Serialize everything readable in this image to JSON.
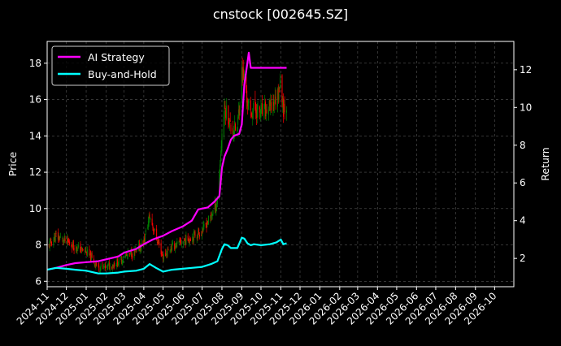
{
  "chart_data": {
    "type": "line",
    "title": "cnstock [002645.SZ]",
    "xlabel": "",
    "ylabel": "Price",
    "ylabel_right": "Return",
    "ylim": [
      5.7,
      19.2
    ],
    "ylim_right": [
      0.5,
      13.5
    ],
    "xlim": [
      "2024-11-01",
      "2026-10-31"
    ],
    "yticks": [
      6,
      8,
      10,
      12,
      14,
      16,
      18
    ],
    "yticks_right": [
      2,
      4,
      6,
      8,
      10,
      12
    ],
    "x_tick_labels": [
      "2024-11",
      "2024-12",
      "2025-01",
      "2025-02",
      "2025-03",
      "2025-04",
      "2025-05",
      "2025-06",
      "2025-07",
      "2025-08",
      "2025-09",
      "2025-10",
      "2025-11",
      "2025-12",
      "2026-01",
      "2026-02",
      "2026-03",
      "2026-04",
      "2026-05",
      "2026-06",
      "2026-07",
      "2026-08",
      "2026-09",
      "2026-10"
    ],
    "grid": true,
    "legend_position": "top-left",
    "candle_up_color": "#008000",
    "candle_down_color": "#ff0000",
    "series": [
      {
        "name": "AI Strategy",
        "axis": "right",
        "color": "#ff00ff",
        "x": [
          "2024-11-01",
          "2024-11-15",
          "2024-12-01",
          "2024-12-15",
          "2025-01-01",
          "2025-01-20",
          "2025-02-01",
          "2025-02-20",
          "2025-03-01",
          "2025-03-20",
          "2025-04-01",
          "2025-04-15",
          "2025-05-01",
          "2025-05-15",
          "2025-06-01",
          "2025-06-15",
          "2025-06-25",
          "2025-07-10",
          "2025-07-20",
          "2025-07-28",
          "2025-08-01",
          "2025-08-05",
          "2025-08-10",
          "2025-08-15",
          "2025-08-20",
          "2025-08-28",
          "2025-09-01",
          "2025-09-05",
          "2025-09-10",
          "2025-09-12",
          "2025-09-15",
          "2025-09-20",
          "2025-10-01",
          "2025-10-15",
          "2025-11-01",
          "2025-11-10"
        ],
        "y": [
          1.4,
          1.5,
          1.65,
          1.75,
          1.8,
          1.85,
          1.95,
          2.1,
          2.3,
          2.5,
          2.75,
          3.0,
          3.2,
          3.45,
          3.7,
          4.0,
          4.6,
          4.7,
          5.0,
          5.3,
          6.8,
          7.4,
          7.8,
          8.3,
          8.5,
          8.6,
          9.1,
          11.2,
          12.4,
          12.9,
          12.1,
          12.1,
          12.1,
          12.1,
          12.1,
          12.1
        ]
      },
      {
        "name": "Buy-and-Hold",
        "axis": "right",
        "color": "#00ffff",
        "x": [
          "2024-11-01",
          "2024-11-15",
          "2024-12-01",
          "2024-12-15",
          "2025-01-01",
          "2025-01-20",
          "2025-02-01",
          "2025-02-20",
          "2025-03-01",
          "2025-03-20",
          "2025-04-01",
          "2025-04-10",
          "2025-04-20",
          "2025-05-01",
          "2025-05-15",
          "2025-06-01",
          "2025-06-15",
          "2025-07-01",
          "2025-07-15",
          "2025-07-25",
          "2025-08-01",
          "2025-08-05",
          "2025-08-10",
          "2025-08-15",
          "2025-08-25",
          "2025-09-01",
          "2025-09-05",
          "2025-09-10",
          "2025-09-15",
          "2025-09-20",
          "2025-10-01",
          "2025-10-15",
          "2025-10-25",
          "2025-11-01",
          "2025-11-05",
          "2025-11-10"
        ],
        "y": [
          1.4,
          1.5,
          1.45,
          1.4,
          1.35,
          1.2,
          1.2,
          1.25,
          1.3,
          1.35,
          1.45,
          1.7,
          1.5,
          1.3,
          1.4,
          1.45,
          1.5,
          1.55,
          1.7,
          1.85,
          2.5,
          2.75,
          2.7,
          2.55,
          2.55,
          3.1,
          3.05,
          2.8,
          2.7,
          2.75,
          2.7,
          2.75,
          2.85,
          3.0,
          2.75,
          2.8
        ]
      }
    ]
  }
}
